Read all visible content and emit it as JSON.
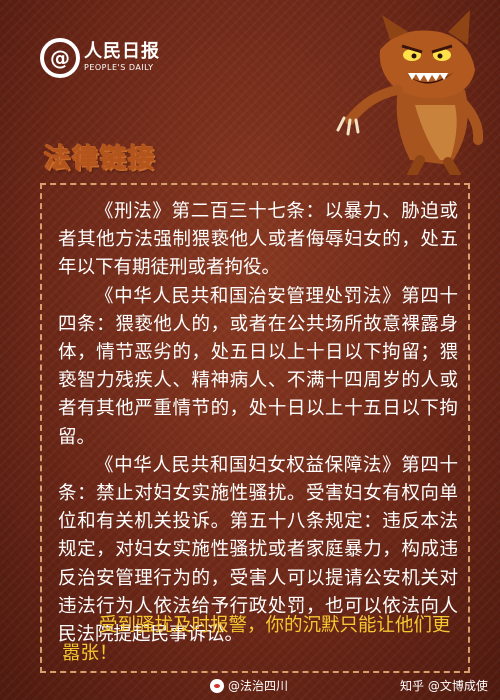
{
  "logo": {
    "at": "@",
    "name_cn": "人民日报",
    "name_en": "PEOPLE'S DAILY"
  },
  "section_title": "法律链接",
  "paragraphs": [
    "《刑法》第二百三十七条：以暴力、胁迫或者其他方法强制猥亵他人或者侮辱妇女的，处五年以下有期徒刑或者拘役。",
    "《中华人民共和国治安管理处罚法》第四十四条：猥亵他人的，或者在公共场所故意裸露身体，情节恶劣的，处五日以上十日以下拘留；猥亵智力残疾人、精神病人、不满十四周岁的人或者有其他严重情节的，处十日以上十五日以下拘留。",
    "《中华人民共和国妇女权益保障法》第四十条：禁止对妇女实施性骚扰。受害妇女有权向单位和有关机关投诉。第五十八条规定：违反本法规定，对妇女实施性骚扰或者家庭暴力，构成违反治安管理行为的，受害人可以提请公安机关对违法行为人依法给予行政处罚，也可以依法向人民法院提起民事诉讼。"
  ],
  "closing": "受到骚扰及时报警，你的沉默只能让他们更嚣张！",
  "footer": {
    "weibo_handle": "@法治四川",
    "watermark": "知乎 @文博成使"
  },
  "colors": {
    "background": "#6e2818",
    "closing_text": "#f6c832",
    "frame": "#d9a06d"
  }
}
